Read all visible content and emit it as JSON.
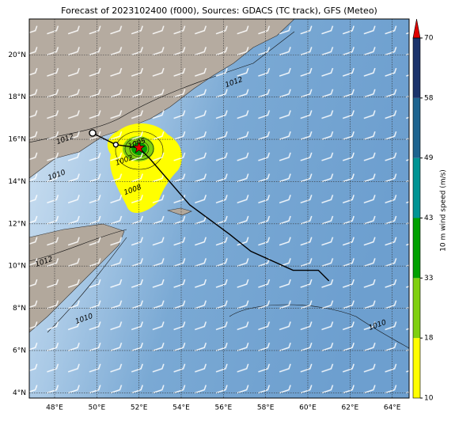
{
  "chart_data": {
    "type": "map",
    "title": "Forecast of 2023102400 (f000), Sources: GDACS (TC track), GFS (Meteo)",
    "xlim": [
      46.8,
      64.8
    ],
    "ylim": [
      3.75,
      21.7
    ],
    "xticks": [
      {
        "value": 48,
        "label": "48°E"
      },
      {
        "value": 50,
        "label": "50°E"
      },
      {
        "value": 52,
        "label": "52°E"
      },
      {
        "value": 54,
        "label": "54°E"
      },
      {
        "value": 56,
        "label": "56°E"
      },
      {
        "value": 58,
        "label": "58°E"
      },
      {
        "value": 60,
        "label": "60°E"
      },
      {
        "value": 62,
        "label": "62°E"
      },
      {
        "value": 64,
        "label": "64°E"
      }
    ],
    "yticks": [
      {
        "value": 4,
        "label": "4°N"
      },
      {
        "value": 6,
        "label": "6°N"
      },
      {
        "value": 8,
        "label": "8°N"
      },
      {
        "value": 10,
        "label": "10°N"
      },
      {
        "value": 12,
        "label": "12°N"
      },
      {
        "value": 14,
        "label": "14°N"
      },
      {
        "value": 16,
        "label": "16°N"
      },
      {
        "value": 18,
        "label": "18°N"
      },
      {
        "value": 20,
        "label": "20°N"
      }
    ],
    "grid": true,
    "track": {
      "color": "#000000",
      "lon": [
        49.8,
        50.9,
        52.0,
        52.5,
        54.4,
        56.3,
        57.3,
        59.3,
        60.5,
        61.0
      ],
      "lat": [
        16.3,
        15.75,
        15.6,
        15.1,
        12.9,
        11.5,
        10.7,
        9.8,
        9.8,
        9.3
      ]
    },
    "current_position": {
      "lon": 52.0,
      "lat": 15.6,
      "color": "#e00000"
    },
    "isobar_labels": [
      {
        "text": "1012",
        "lon": 56.5,
        "lat": 18.7
      },
      {
        "text": "1012",
        "lon": 48.5,
        "lat": 16.0
      },
      {
        "text": "1010",
        "lon": 48.1,
        "lat": 14.3
      },
      {
        "text": "1005",
        "lon": 51.9,
        "lat": 15.8
      },
      {
        "text": "1002",
        "lon": 51.3,
        "lat": 15.0
      },
      {
        "text": "1008",
        "lon": 51.7,
        "lat": 13.6
      },
      {
        "text": "1012",
        "lon": 47.5,
        "lat": 10.2
      },
      {
        "text": "1010",
        "lon": 49.4,
        "lat": 7.5
      },
      {
        "text": "1010",
        "lon": 63.3,
        "lat": 7.2
      }
    ],
    "colorbar": {
      "label": "10 m wind speed (m/s)",
      "ticks": [
        10,
        18,
        33,
        43,
        49,
        58,
        70
      ],
      "colors": [
        "#ffff00",
        "#80d010",
        "#00a000",
        "#009494",
        "#1e6490",
        "#1c336c"
      ],
      "extend_color": "#e00000"
    }
  }
}
